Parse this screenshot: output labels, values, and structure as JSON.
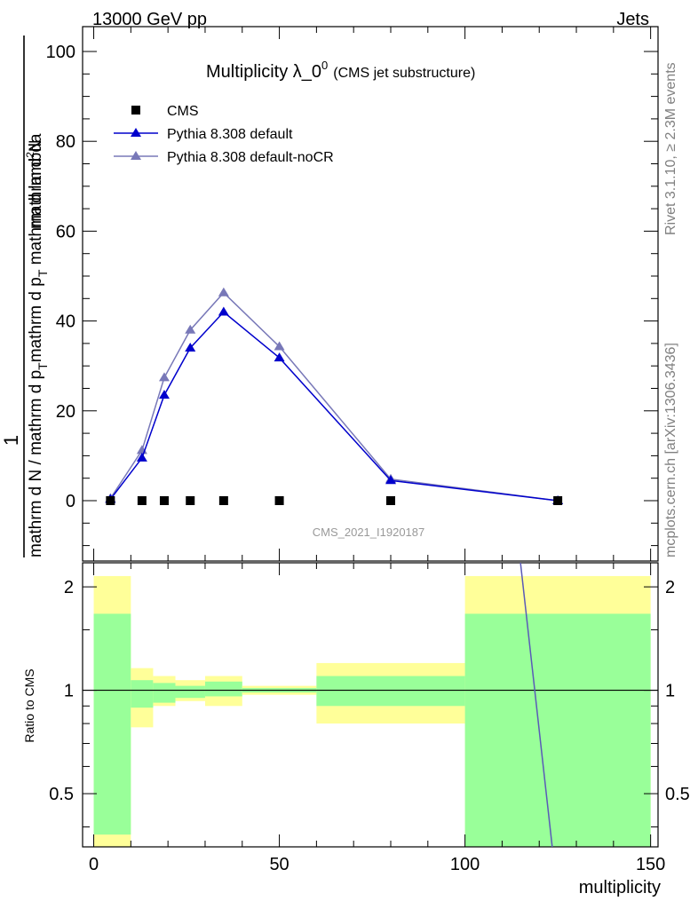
{
  "header": {
    "left": "13000 GeV pp",
    "right": "Jets"
  },
  "side_labels": {
    "rivet": "Rivet 3.1.10, ≥ 2.3M events",
    "mcplots": "mcplots.cern.ch [arXiv:1306.3436]"
  },
  "watermark": "CMS_2021_I1920187",
  "chart_data": [
    {
      "type": "line",
      "title": "Multiplicity λ_0",
      "title_sup": "0",
      "subtitle": "(CMS jet substructure)",
      "ylabel_numer": "1",
      "ylabel_denom": "mathrm d N / mathrm d p",
      "ylabel_denom_sub": "T",
      "ylabel_numer2": "mathrm d",
      "ylabel_numer2_sup": "2",
      "ylabel_numer2_rest": "N",
      "ylabel_denom2": "mathrm d p",
      "ylabel_denom2_sub": "T",
      "ylabel_denom2_rest": " mathrm d lambda",
      "xlim": [
        -3,
        152
      ],
      "ylim": [
        -12,
        104
      ],
      "yticks": [
        0,
        20,
        40,
        60,
        80,
        100
      ],
      "legend_position": "top-left",
      "series": [
        {
          "name": "CMS",
          "marker": "square",
          "color": "#000000",
          "x": [
            4.5,
            13,
            19,
            26,
            35,
            50,
            80,
            125
          ],
          "values": [
            0,
            0,
            0,
            0,
            0,
            0,
            0,
            0
          ]
        },
        {
          "name": "Pythia 8.308 default",
          "marker": "triangle",
          "color": "#0000cc",
          "x": [
            4.5,
            13,
            19,
            26,
            35,
            50,
            80,
            125
          ],
          "values": [
            0.3,
            9.5,
            23.5,
            34,
            42,
            31.8,
            4.5,
            0
          ]
        },
        {
          "name": "Pythia 8.308 default-noCR",
          "marker": "triangle",
          "color": "#7878b8",
          "x": [
            4.5,
            13,
            19,
            26,
            35,
            50,
            80,
            125
          ],
          "values": [
            0.5,
            11.2,
            27.4,
            38,
            46.3,
            34.3,
            4.8,
            0
          ]
        }
      ]
    },
    {
      "type": "line",
      "ylabel": "Ratio to CMS",
      "xlabel": "multiplicity",
      "xlim": [
        -3,
        152
      ],
      "ylim": [
        0.35,
        2.35
      ],
      "yticks": [
        0.5,
        1,
        2
      ],
      "ytick_labels": [
        "0.5",
        "1",
        "2"
      ],
      "xticks": [
        0,
        50,
        100,
        150
      ],
      "xtick_labels": [
        "0",
        "50",
        "100",
        "150"
      ],
      "bands": [
        {
          "x0": 0,
          "x1": 10,
          "green": [
            0.38,
            1.67
          ],
          "yellow": [
            0.35,
            2.15
          ]
        },
        {
          "x0": 10,
          "x1": 16,
          "green": [
            0.89,
            1.07
          ],
          "yellow": [
            0.78,
            1.16
          ]
        },
        {
          "x0": 16,
          "x1": 22,
          "green": [
            0.92,
            1.05
          ],
          "yellow": [
            0.9,
            1.1
          ]
        },
        {
          "x0": 22,
          "x1": 30,
          "green": [
            0.95,
            1.03
          ],
          "yellow": [
            0.93,
            1.07
          ]
        },
        {
          "x0": 30,
          "x1": 40,
          "green": [
            0.96,
            1.06
          ],
          "yellow": [
            0.9,
            1.1
          ]
        },
        {
          "x0": 40,
          "x1": 60,
          "green": [
            0.985,
            1.015
          ],
          "yellow": [
            0.97,
            1.03
          ]
        },
        {
          "x0": 60,
          "x1": 100,
          "green": [
            0.9,
            1.1
          ],
          "yellow": [
            0.8,
            1.2
          ]
        },
        {
          "x0": 100,
          "x1": 150,
          "green": [
            0.35,
            1.67
          ],
          "yellow": [
            0.35,
            2.15
          ]
        }
      ],
      "series": [
        {
          "name": "Pythia 8.308 default-noCR ratio",
          "color": "#5a5ab8",
          "x": [
            114.5,
            123.5
          ],
          "values": [
            2.6,
            0.35
          ]
        }
      ]
    }
  ]
}
